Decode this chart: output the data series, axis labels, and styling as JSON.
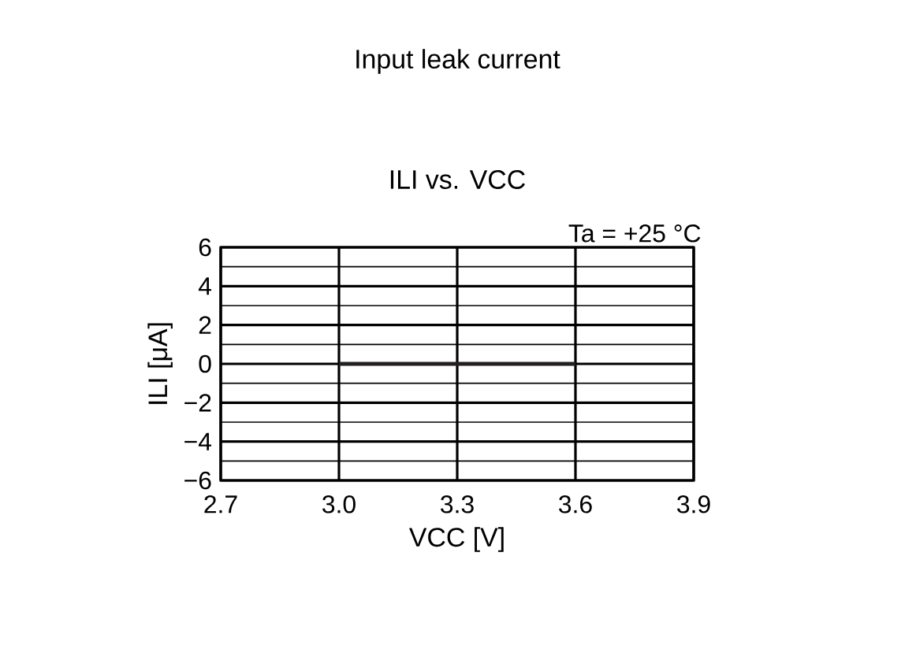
{
  "chart_data": {
    "type": "line",
    "title": "Input leak current",
    "subtitle": "ILI vs. VCC",
    "xlabel": "VCC [V]",
    "ylabel": "ILI [μA]",
    "annotations": [
      "Ta = +25 °C"
    ],
    "xlim": [
      2.7,
      3.9
    ],
    "xticks": [
      {
        "value": 2.7,
        "label": "2.7"
      },
      {
        "value": 3.0,
        "label": "3.0"
      },
      {
        "value": 3.3,
        "label": "3.3"
      },
      {
        "value": 3.6,
        "label": "3.6"
      },
      {
        "value": 3.9,
        "label": "3.9"
      }
    ],
    "ylim": [
      -6,
      6
    ],
    "yticks": [
      {
        "value": -6,
        "label": "−6"
      },
      {
        "value": -5,
        "label": null
      },
      {
        "value": -4,
        "label": "−4"
      },
      {
        "value": -3,
        "label": null
      },
      {
        "value": -2,
        "label": "−2"
      },
      {
        "value": -1,
        "label": null
      },
      0,
      {
        "value": 1,
        "label": null
      },
      2,
      {
        "value": 3,
        "label": null
      },
      4,
      {
        "value": 5,
        "label": null
      },
      6
    ],
    "grid": true,
    "marker": "none",
    "line_style": "solid",
    "series": [
      {
        "color": "#231f20",
        "x": [
          3.0,
          3.6
        ],
        "values": [
          0,
          0
        ]
      }
    ]
  }
}
